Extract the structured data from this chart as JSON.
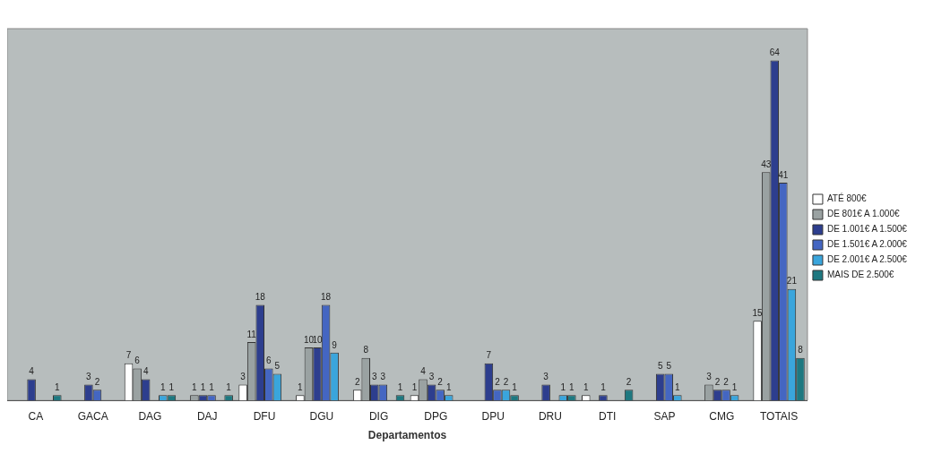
{
  "chart_data": {
    "type": "bar",
    "xlabel": "Departamentos",
    "categories": [
      "CA",
      "GACA",
      "DAG",
      "DAJ",
      "DFU",
      "DGU",
      "DIG",
      "DPG",
      "DPU",
      "DRU",
      "DTI",
      "SAP",
      "CMG",
      "TOTAIS"
    ],
    "series": [
      {
        "name": "ATÉ 800€",
        "color": "#ffffff",
        "values": [
          null,
          null,
          7,
          null,
          3,
          1,
          2,
          1,
          null,
          null,
          1,
          null,
          null,
          15
        ]
      },
      {
        "name": "DE 801€ A 1.000€",
        "color": "#9aa2a2",
        "values": [
          null,
          null,
          6,
          1,
          11,
          10,
          8,
          4,
          null,
          null,
          null,
          null,
          3,
          43
        ]
      },
      {
        "name": "DE 1.001€ A 1.500€",
        "color": "#2d3e8e",
        "values": [
          4,
          3,
          4,
          1,
          18,
          10,
          3,
          3,
          7,
          3,
          1,
          5,
          2,
          64
        ]
      },
      {
        "name": "DE 1.501€ A 2.000€",
        "color": "#4466c2",
        "values": [
          null,
          2,
          null,
          1,
          6,
          18,
          3,
          2,
          2,
          null,
          null,
          5,
          2,
          41
        ]
      },
      {
        "name": "DE 2.001€ A 2.500€",
        "color": "#3aa5dc",
        "values": [
          null,
          null,
          1,
          null,
          5,
          9,
          null,
          1,
          2,
          1,
          null,
          1,
          1,
          21
        ]
      },
      {
        "name": "MAIS DE 2.500€",
        "color": "#1e7880",
        "values": [
          1,
          null,
          1,
          1,
          null,
          null,
          1,
          null,
          1,
          1,
          2,
          null,
          null,
          8
        ]
      }
    ],
    "data_labels": true,
    "grid": false,
    "legend": "right"
  }
}
